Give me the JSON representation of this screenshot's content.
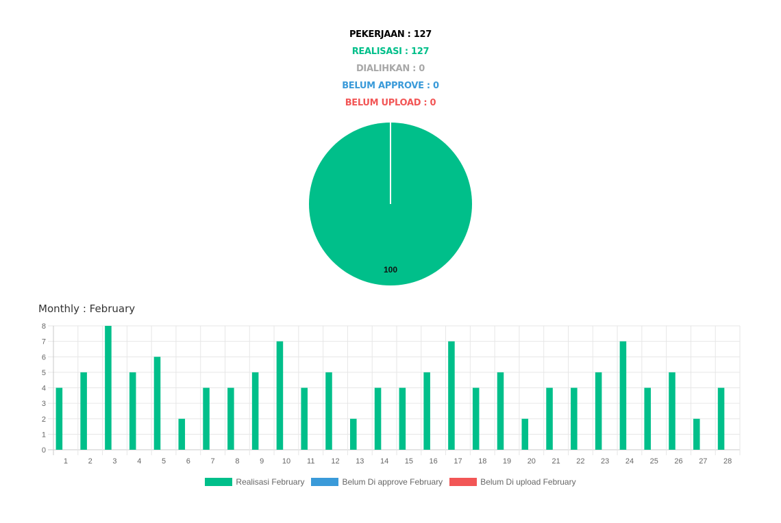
{
  "summary": {
    "pekerjaan": "PEKERJAAN : 127",
    "realisasi": "REALISASI : 127",
    "dialihkan": "DIALIHKAN : 0",
    "belum_approve": "BELUM APPROVE : 0",
    "belum_upload": "BELUM UPLOAD : 0"
  },
  "colors": {
    "pekerjaan": "#000000",
    "realisasi": "#00bf8a",
    "dialihkan": "#a8a8a8",
    "belum_approve": "#3a9ad9",
    "belum_upload": "#f25656"
  },
  "monthly": {
    "title": "Monthly : February"
  },
  "chart_data": [
    {
      "type": "pie",
      "slices": [
        {
          "label": "Realisasi",
          "value": 100,
          "color": "#00bf8a"
        }
      ],
      "data_labels": [
        "100"
      ]
    },
    {
      "type": "bar",
      "categories": [
        "1",
        "2",
        "3",
        "4",
        "5",
        "6",
        "7",
        "8",
        "9",
        "10",
        "11",
        "12",
        "13",
        "14",
        "15",
        "16",
        "17",
        "18",
        "19",
        "20",
        "21",
        "22",
        "23",
        "24",
        "25",
        "26",
        "27",
        "28"
      ],
      "series": [
        {
          "name": "Realisasi February",
          "color": "#00bf8a",
          "values": [
            4,
            5,
            8,
            5,
            6,
            2,
            4,
            4,
            5,
            7,
            4,
            5,
            2,
            4,
            4,
            5,
            7,
            4,
            5,
            2,
            4,
            4,
            5,
            7,
            4,
            5,
            2,
            4
          ]
        },
        {
          "name": "Belum Di approve February",
          "color": "#3a9ad9",
          "values": [
            0,
            0,
            0,
            0,
            0,
            0,
            0,
            0,
            0,
            0,
            0,
            0,
            0,
            0,
            0,
            0,
            0,
            0,
            0,
            0,
            0,
            0,
            0,
            0,
            0,
            0,
            0,
            0
          ]
        },
        {
          "name": "Belum Di upload February",
          "color": "#f25656",
          "values": [
            0,
            0,
            0,
            0,
            0,
            0,
            0,
            0,
            0,
            0,
            0,
            0,
            0,
            0,
            0,
            0,
            0,
            0,
            0,
            0,
            0,
            0,
            0,
            0,
            0,
            0,
            0,
            0
          ]
        }
      ],
      "ylim": [
        0,
        8
      ],
      "yticks": [
        "0",
        "1",
        "2",
        "3",
        "4",
        "5",
        "6",
        "7",
        "8"
      ],
      "grid": true,
      "legend_position": "bottom"
    }
  ]
}
